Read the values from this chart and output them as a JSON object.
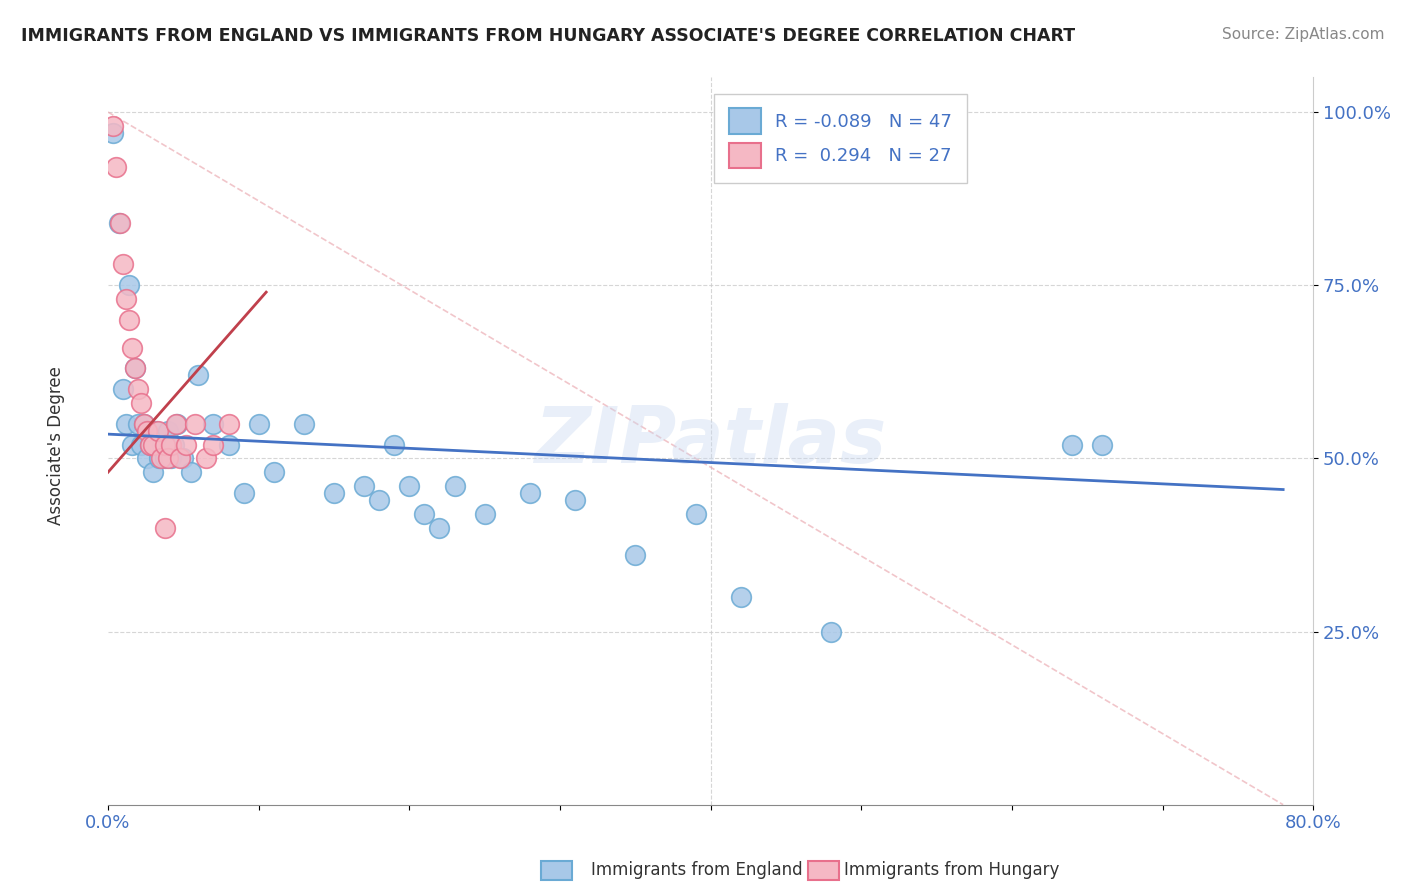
{
  "title": "IMMIGRANTS FROM ENGLAND VS IMMIGRANTS FROM HUNGARY ASSOCIATE'S DEGREE CORRELATION CHART",
  "source": "Source: ZipAtlas.com",
  "ylabel": "Associate's Degree",
  "xlim": [
    0.0,
    0.8
  ],
  "ylim": [
    0.0,
    1.05
  ],
  "england_R": "-0.089",
  "england_N": "47",
  "hungary_R": "0.294",
  "hungary_N": "27",
  "england_color": "#a8c8e8",
  "england_edge": "#6aaad4",
  "hungary_color": "#f5b8c4",
  "hungary_edge": "#e8708c",
  "trend_england_color": "#4472c4",
  "trend_hungary_color": "#c0404c",
  "watermark": "ZIPatlas",
  "eng_x": [
    0.003,
    0.007,
    0.01,
    0.012,
    0.014,
    0.016,
    0.018,
    0.02,
    0.022,
    0.024,
    0.026,
    0.028,
    0.03,
    0.032,
    0.034,
    0.036,
    0.038,
    0.04,
    0.042,
    0.044,
    0.046,
    0.05,
    0.055,
    0.06,
    0.07,
    0.08,
    0.09,
    0.1,
    0.11,
    0.13,
    0.15,
    0.17,
    0.19,
    0.21,
    0.23,
    0.25,
    0.28,
    0.31,
    0.35,
    0.39,
    0.18,
    0.2,
    0.22,
    0.42,
    0.48,
    0.64,
    0.66
  ],
  "eng_y": [
    0.97,
    0.84,
    0.6,
    0.55,
    0.75,
    0.52,
    0.63,
    0.55,
    0.52,
    0.55,
    0.5,
    0.52,
    0.48,
    0.54,
    0.5,
    0.52,
    0.5,
    0.54,
    0.5,
    0.52,
    0.55,
    0.5,
    0.48,
    0.62,
    0.55,
    0.52,
    0.45,
    0.55,
    0.48,
    0.55,
    0.45,
    0.46,
    0.52,
    0.42,
    0.46,
    0.42,
    0.45,
    0.44,
    0.36,
    0.42,
    0.44,
    0.46,
    0.4,
    0.3,
    0.25,
    0.52,
    0.52
  ],
  "hun_x": [
    0.003,
    0.005,
    0.008,
    0.01,
    0.012,
    0.014,
    0.016,
    0.018,
    0.02,
    0.022,
    0.024,
    0.026,
    0.028,
    0.03,
    0.033,
    0.035,
    0.038,
    0.04,
    0.042,
    0.045,
    0.048,
    0.052,
    0.058,
    0.065,
    0.07,
    0.08,
    0.038
  ],
  "hun_y": [
    0.98,
    0.92,
    0.84,
    0.78,
    0.73,
    0.7,
    0.66,
    0.63,
    0.6,
    0.58,
    0.55,
    0.54,
    0.52,
    0.52,
    0.54,
    0.5,
    0.52,
    0.5,
    0.52,
    0.55,
    0.5,
    0.52,
    0.55,
    0.5,
    0.52,
    0.55,
    0.4
  ],
  "eng_trend_x0": 0.0,
  "eng_trend_x1": 0.78,
  "eng_trend_y0": 0.535,
  "eng_trend_y1": 0.455,
  "hun_trend_x0": 0.0,
  "hun_trend_x1": 0.105,
  "hun_trend_y0": 0.48,
  "hun_trend_y1": 0.74,
  "ref_line_x0": 0.0,
  "ref_line_x1": 0.78,
  "ref_line_y0": 1.0,
  "ref_line_y1": 0.0
}
